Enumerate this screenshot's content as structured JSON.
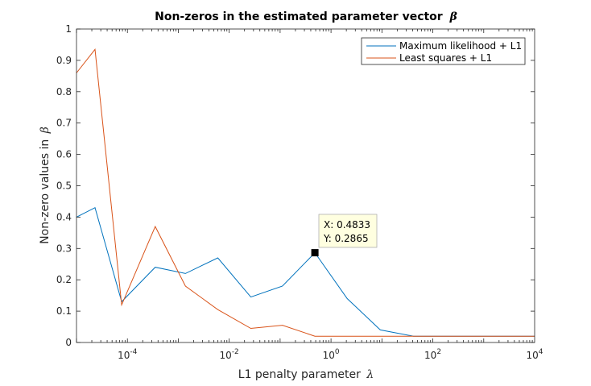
{
  "chart_data": {
    "type": "line",
    "title": "Non-zeros in the estimated parameter vector",
    "title_symbol": "β",
    "xlabel": "L1 penalty parameter",
    "xlabel_symbol": "λ",
    "ylabel": "Non-zero values in",
    "ylabel_symbol": "β",
    "xscale": "log",
    "xlim": [
      1e-05,
      10000
    ],
    "ylim": [
      0,
      1
    ],
    "x_ticks": [
      {
        "base": "10",
        "exp": "-4",
        "value": 0.0001
      },
      {
        "base": "10",
        "exp": "-2",
        "value": 0.01
      },
      {
        "base": "10",
        "exp": "0",
        "value": 1
      },
      {
        "base": "10",
        "exp": "2",
        "value": 100
      },
      {
        "base": "10",
        "exp": "4",
        "value": 10000
      }
    ],
    "y_ticks": [
      "0",
      "0.1",
      "0.2",
      "0.3",
      "0.4",
      "0.5",
      "0.6",
      "0.7",
      "0.8",
      "0.9",
      "1"
    ],
    "y_tick_values": [
      0,
      0.1,
      0.2,
      0.3,
      0.4,
      0.5,
      0.6,
      0.7,
      0.8,
      0.9,
      1
    ],
    "grid": false,
    "legend_position": "top-right",
    "x": [
      1e-05,
      2.31e-05,
      7.71e-05,
      0.000352,
      0.00138,
      0.00598,
      0.0266,
      0.111,
      0.4833,
      2.08,
      9.27,
      41.7,
      200,
      1000,
      10000
    ],
    "series": [
      {
        "name": "Maximum likelihood + L1",
        "color": "#0072BD",
        "values": [
          0.4,
          0.43,
          0.13,
          0.24,
          0.22,
          0.27,
          0.145,
          0.18,
          0.2865,
          0.14,
          0.04,
          0.02,
          0.02,
          0.02,
          0.02
        ]
      },
      {
        "name": "Least squares + L1",
        "color": "#D95319",
        "values": [
          0.86,
          0.935,
          0.12,
          0.37,
          0.18,
          0.105,
          0.045,
          0.055,
          0.02,
          0.02,
          0.02,
          0.02,
          0.02,
          0.02,
          0.02
        ]
      }
    ],
    "datatip": {
      "x_label": "X: 0.4833",
      "y_label": "Y: 0.2865",
      "x": 0.4833,
      "y": 0.2865
    }
  }
}
